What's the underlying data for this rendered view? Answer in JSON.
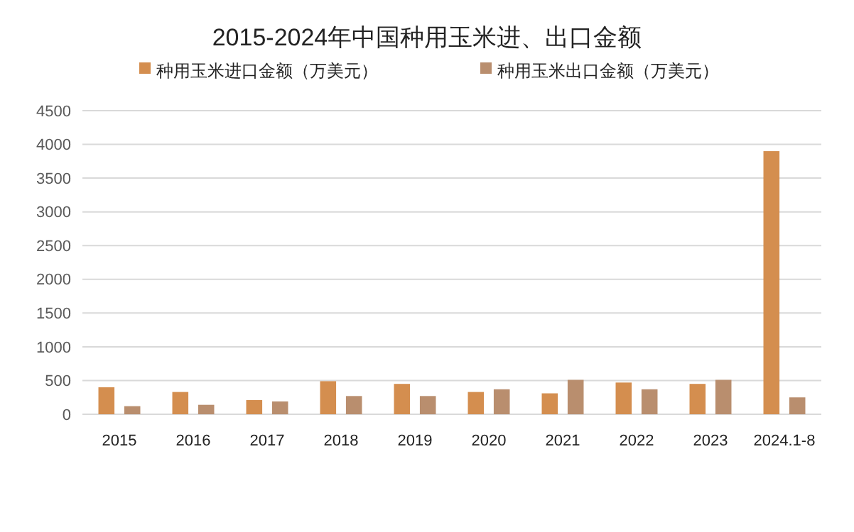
{
  "chart_data": {
    "type": "bar",
    "title": "2015-2024年中国种用玉米进、出口金额",
    "categories": [
      "2015",
      "2016",
      "2017",
      "2018",
      "2019",
      "2020",
      "2021",
      "2022",
      "2023",
      "2024.1-8"
    ],
    "series": [
      {
        "name": "种用玉米进口金额（万美元）",
        "color": "#d48e4f",
        "values": [
          400,
          330,
          210,
          490,
          450,
          330,
          310,
          470,
          450,
          3900
        ]
      },
      {
        "name": "种用玉米出口金额（万美元）",
        "color": "#b98e6e",
        "values": [
          120,
          140,
          190,
          270,
          270,
          370,
          510,
          370,
          510,
          250
        ]
      }
    ],
    "ylim": [
      0,
      4500
    ],
    "yticks": [
      0,
      500,
      1000,
      1500,
      2000,
      2500,
      3000,
      3500,
      4000,
      4500
    ],
    "grid": "y",
    "legend": "top"
  }
}
